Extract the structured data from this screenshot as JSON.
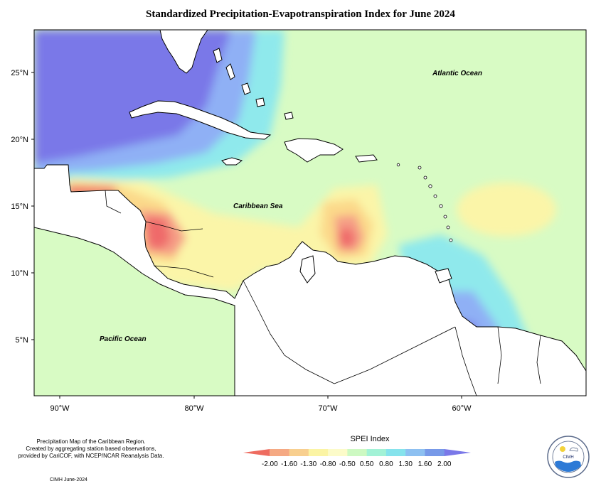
{
  "title": "Standardized Precipitation-Evapotranspiration Index for June 2024",
  "map": {
    "lat_ticks": [
      "25°N",
      "20°N",
      "15°N",
      "10°N",
      "5°N"
    ],
    "lon_ticks": [
      "90°W",
      "80°W",
      "70°W",
      "60°W"
    ],
    "labels": {
      "atlantic": "Atlantic Ocean",
      "caribbean": "Caribbean Sea",
      "pacific": "Pacific Ocean"
    },
    "colors": {
      "very_wet": "#7a78e8",
      "wet": "#8fb0f5",
      "moist": "#8fe9ec",
      "near_normal": "#d8fbc4",
      "mild_dry": "#fbf5a8",
      "dry": "#fbd98a",
      "very_dry": "#f59d86",
      "extreme_dry": "#ef6b6b",
      "land": "#ffffff"
    }
  },
  "legend": {
    "title": "SPEI Index",
    "values": [
      "-2.00",
      "-1.60",
      "-1.30",
      "-0.80",
      "-0.50",
      "0.50",
      "0.80",
      "1.30",
      "1.60",
      "2.00"
    ],
    "colors": [
      "#ee6c60",
      "#f5a983",
      "#f8cf8f",
      "#fbf4a4",
      "#fcfbc9",
      "#cdf9c2",
      "#a2f2d6",
      "#86e3ec",
      "#8dc0f1",
      "#7799e8",
      "#7a78e8"
    ]
  },
  "notes": {
    "line1": "Precipitation Map of the Caribbean Region.",
    "line2": "Created by aggregating station based observations,",
    "line3": "provided by CariCOF, with NCEP/NCAR Reanalysis Data."
  },
  "footer": "CIMH June-2024",
  "logo": {
    "text": "CIMH"
  }
}
